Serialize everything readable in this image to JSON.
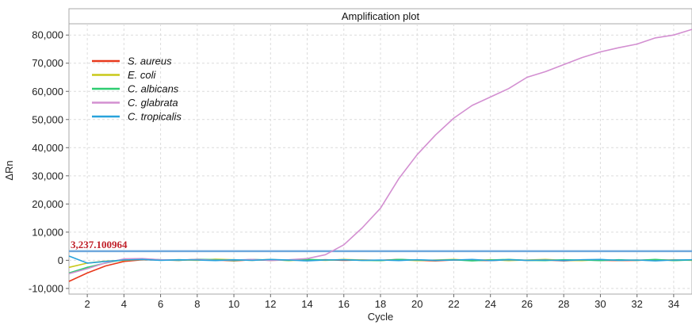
{
  "chart_data": {
    "type": "line",
    "title": "Amplification plot",
    "xlabel": "Cycle",
    "ylabel": "ΔRn",
    "xlim": [
      1,
      35
    ],
    "ylim": [
      -12000,
      84000
    ],
    "xticks": [
      2,
      4,
      6,
      8,
      10,
      12,
      14,
      16,
      18,
      20,
      22,
      24,
      26,
      28,
      30,
      32,
      34
    ],
    "yticks": [
      -10000,
      0,
      10000,
      20000,
      30000,
      40000,
      50000,
      60000,
      70000,
      80000
    ],
    "ytick_labels": [
      "-10,000",
      "0",
      "10,000",
      "20,000",
      "30,000",
      "40,000",
      "50,000",
      "60,000",
      "70,000",
      "80,000"
    ],
    "grid": true,
    "legend_position": "top-left",
    "threshold": {
      "value": 3237.100964,
      "label": "3,237.100964",
      "color": "#6fa8dc"
    },
    "x": [
      1,
      2,
      3,
      4,
      5,
      6,
      7,
      8,
      9,
      10,
      11,
      12,
      13,
      14,
      15,
      16,
      17,
      18,
      19,
      20,
      21,
      22,
      23,
      24,
      25,
      26,
      27,
      28,
      29,
      30,
      31,
      32,
      33,
      34,
      35
    ],
    "series": [
      {
        "name": "S. aureus",
        "color": "#e8391c",
        "values": [
          -7500,
          -4500,
          -2000,
          -400,
          200,
          100,
          0,
          300,
          100,
          -200,
          200,
          0,
          100,
          0,
          200,
          0,
          100,
          0,
          300,
          0,
          -200,
          100,
          0,
          -100,
          200,
          0,
          100,
          -200,
          100,
          0,
          -100,
          0,
          200,
          0,
          100
        ]
      },
      {
        "name": "E. coli",
        "color": "#c8c81a",
        "values": [
          -2500,
          -1000,
          -300,
          0,
          300,
          100,
          200,
          0,
          400,
          200,
          0,
          300,
          -100,
          200,
          0,
          300,
          100,
          0,
          200,
          -100,
          100,
          300,
          0,
          200,
          -100,
          100,
          300,
          0,
          -100,
          200,
          0,
          100,
          -100,
          200,
          0
        ]
      },
      {
        "name": "C. albicans",
        "color": "#2ecc71",
        "values": [
          -4500,
          -2500,
          -1000,
          300,
          500,
          200,
          0,
          400,
          200,
          -100,
          300,
          100,
          0,
          300,
          100,
          200,
          0,
          -100,
          300,
          100,
          0,
          200,
          -200,
          100,
          300,
          0,
          -100,
          200,
          100,
          -100,
          200,
          0,
          300,
          -100,
          100
        ]
      },
      {
        "name": "C. glabrata",
        "color": "#d38fd1",
        "values": [
          -4800,
          -3000,
          -900,
          500,
          600,
          200,
          100,
          300,
          0,
          100,
          300,
          0,
          200,
          600,
          2000,
          5500,
          11500,
          18500,
          29000,
          37500,
          44500,
          50500,
          55000,
          58000,
          61000,
          65000,
          67000,
          69500,
          72000,
          74000,
          75500,
          76800,
          79000,
          80000,
          82000
        ]
      },
      {
        "name": "C. tropicalis",
        "color": "#29a3dc",
        "values": [
          1500,
          -1000,
          -400,
          100,
          300,
          0,
          200,
          100,
          -100,
          200,
          0,
          300,
          100,
          -200,
          100,
          200,
          0,
          100,
          -100,
          200,
          0,
          100,
          300,
          -100,
          200,
          0,
          100,
          -100,
          200,
          300,
          0,
          100,
          -200,
          100,
          200
        ]
      }
    ]
  }
}
